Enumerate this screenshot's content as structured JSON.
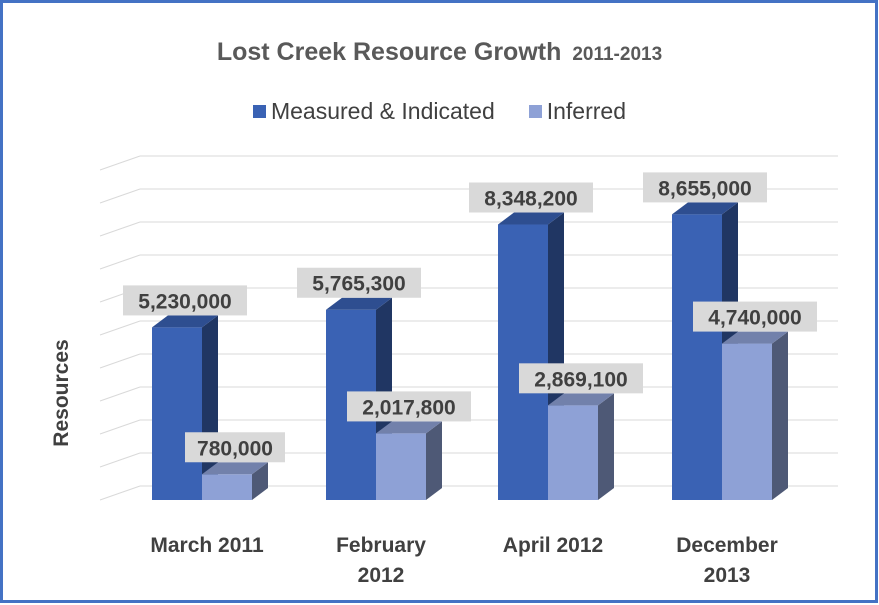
{
  "chart_data": {
    "type": "bar",
    "title": "Lost Creek Resource Growth",
    "title_suffix": "2011-2013",
    "ylabel": "Resources",
    "categories": [
      [
        "March 2011"
      ],
      [
        "February",
        "2012"
      ],
      [
        "April 2012"
      ],
      [
        "December",
        "2013"
      ]
    ],
    "series": [
      {
        "name": "Measured & Indicated",
        "color": "#3a62b4",
        "values": [
          5230000,
          5765300,
          8348200,
          8655000
        ],
        "labels": [
          "5,230,000",
          "5,765,300",
          "8,348,200",
          "8,655,000"
        ]
      },
      {
        "name": "Inferred",
        "color": "#8ea1d6",
        "values": [
          780000,
          2017800,
          2869100,
          4740000
        ],
        "labels": [
          "780,000",
          "2,017,800",
          "2,869,100",
          "4,740,000"
        ]
      }
    ],
    "ylim": [
      0,
      10000000
    ],
    "grid": true,
    "legend_position": "top",
    "style": "3d-clustered-column"
  }
}
